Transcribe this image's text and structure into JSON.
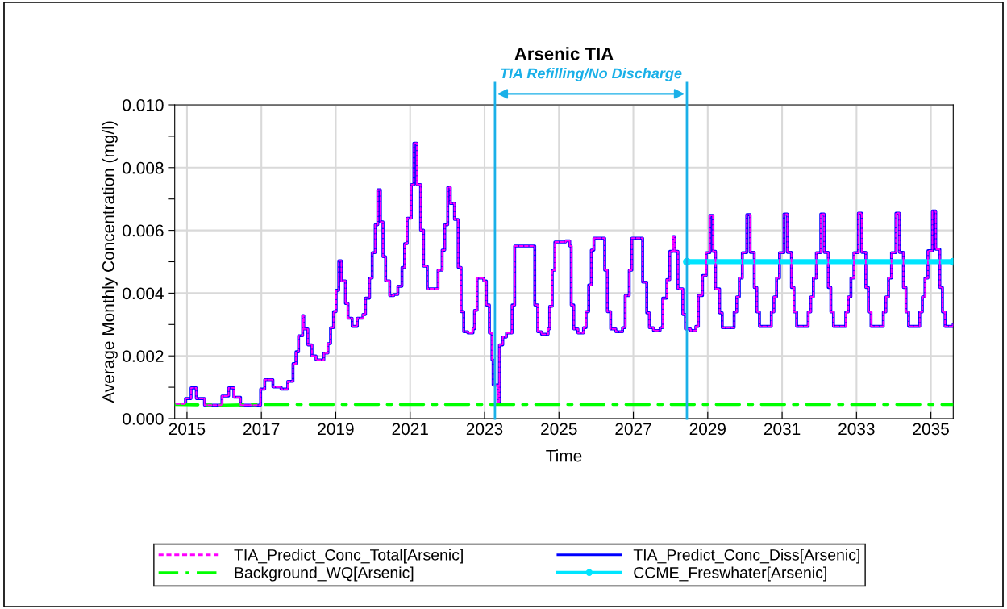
{
  "chart_data": {
    "type": "step",
    "title": "Arsenic TIA",
    "xlabel": "Time",
    "ylabel": "Average Monthly Concentration (mg/l)",
    "xlim": [
      2014.67,
      2035.6
    ],
    "xticks": [
      2015,
      2017,
      2019,
      2021,
      2023,
      2025,
      2027,
      2029,
      2031,
      2033,
      2035
    ],
    "ylim": [
      0,
      0.01
    ],
    "yticks": [
      {
        "value": 0,
        "label": "0.000"
      },
      {
        "value": 0.001,
        "label": null
      },
      {
        "value": 0.002,
        "label": "0.002"
      },
      {
        "value": 0.003,
        "label": null
      },
      {
        "value": 0.004,
        "label": "0.004"
      },
      {
        "value": 0.005,
        "label": null
      },
      {
        "value": 0.006,
        "label": "0.006"
      },
      {
        "value": 0.007,
        "label": null
      },
      {
        "value": 0.008,
        "label": "0.008"
      },
      {
        "value": 0.009,
        "label": null
      },
      {
        "value": 0.01,
        "label": "0.010"
      }
    ],
    "grid": true,
    "legend": "bottom",
    "annotations": [
      "TIA Refilling/No Discharge"
    ],
    "ref_lines": [
      {
        "axis": "x",
        "value": 2023.28,
        "color": "#1ab0e8"
      },
      {
        "axis": "x",
        "value": 2028.44,
        "color": "#1ab0e8"
      }
    ],
    "x": [
      2014.71,
      2014.96,
      2015.11,
      2015.25,
      2015.47,
      2015.72,
      2015.94,
      2016.12,
      2016.26,
      2016.44,
      2016.73,
      2016.98,
      2017.09,
      2017.31,
      2017.53,
      2017.71,
      2017.85,
      2017.93,
      2018.0,
      2018.11,
      2018.14,
      2018.25,
      2018.36,
      2018.47,
      2018.68,
      2018.79,
      2018.86,
      2018.94,
      2019.01,
      2019.08,
      2019.15,
      2019.26,
      2019.33,
      2019.44,
      2019.58,
      2019.73,
      2019.8,
      2019.91,
      2019.98,
      2020.06,
      2020.13,
      2020.2,
      2020.27,
      2020.34,
      2020.45,
      2020.56,
      2020.67,
      2020.78,
      2020.85,
      2020.92,
      2021.03,
      2021.1,
      2021.18,
      2021.28,
      2021.36,
      2021.46,
      2021.68,
      2021.75,
      2021.86,
      2021.93,
      2022.01,
      2022.08,
      2022.19,
      2022.29,
      2022.37,
      2022.44,
      2022.55,
      2022.69,
      2022.73,
      2022.8,
      2022.98,
      2023.05,
      2023.13,
      2023.2,
      2023.23,
      2023.36,
      2023.4,
      2023.49,
      2023.59,
      2023.74,
      2023.81,
      2024.32,
      2024.35,
      2024.43,
      2024.53,
      2024.71,
      2024.75,
      2024.82,
      2024.89,
      2025.18,
      2025.29,
      2025.33,
      2025.4,
      2025.51,
      2025.66,
      2025.73,
      2025.8,
      2025.87,
      2025.94,
      2026.2,
      2026.23,
      2026.3,
      2026.39,
      2026.53,
      2026.71,
      2026.78,
      2026.89,
      2026.96,
      2027.18,
      2027.25,
      2027.36,
      2027.43,
      2027.54,
      2027.72,
      2027.79,
      2027.9,
      2027.98,
      2028.07,
      2028.11,
      2028.2,
      2028.33,
      2028.4,
      2028.54,
      2028.68,
      2028.75,
      2028.86,
      2028.96,
      2029.06,
      2029.14,
      2029.21,
      2029.32,
      2029.39,
      2029.71,
      2029.78,
      2029.85,
      2029.93,
      2030.05,
      2030.14,
      2030.25,
      2030.32,
      2030.39,
      2030.71,
      2030.78,
      2030.85,
      2030.93,
      2031.05,
      2031.14,
      2031.25,
      2031.32,
      2031.39,
      2031.7,
      2031.77,
      2031.84,
      2031.92,
      2032.04,
      2032.13,
      2032.24,
      2032.31,
      2032.38,
      2032.71,
      2032.78,
      2032.85,
      2032.93,
      2033.05,
      2033.14,
      2033.25,
      2033.32,
      2033.39,
      2033.72,
      2033.79,
      2033.86,
      2033.94,
      2034.06,
      2034.15,
      2034.26,
      2034.33,
      2034.4,
      2034.7,
      2034.77,
      2034.84,
      2034.92,
      2035.04,
      2035.13,
      2035.24,
      2035.31,
      2035.38,
      2035.6
    ],
    "series": [
      {
        "name": "TIA_Predict_Conc_Total[Arsenic]",
        "color": "#ff00ff",
        "line_style": "dashed",
        "values": [
          0.00047,
          0.00064,
          0.00098,
          0.00064,
          0.00043,
          0.00043,
          0.00072,
          0.00098,
          0.00068,
          0.00043,
          0.00043,
          0.00094,
          0.00124,
          0.00101,
          0.00094,
          0.00119,
          0.00175,
          0.00213,
          0.00264,
          0.00328,
          0.00286,
          0.00235,
          0.002,
          0.00187,
          0.00209,
          0.00239,
          0.0029,
          0.00341,
          0.00409,
          0.00503,
          0.00439,
          0.00367,
          0.0032,
          0.00294,
          0.0032,
          0.00332,
          0.00384,
          0.00448,
          0.00529,
          0.00618,
          0.00729,
          0.00627,
          0.00516,
          0.00439,
          0.00392,
          0.00396,
          0.00422,
          0.00482,
          0.00558,
          0.00639,
          0.00746,
          0.00878,
          0.00746,
          0.00601,
          0.00486,
          0.00414,
          0.00414,
          0.00473,
          0.00537,
          0.00618,
          0.00737,
          0.00686,
          0.00635,
          0.00482,
          0.00341,
          0.00277,
          0.00273,
          0.00286,
          0.00345,
          0.00448,
          0.00439,
          0.00362,
          0.00273,
          0.00187,
          0.00107,
          0.00051,
          0.00235,
          0.0026,
          0.00273,
          0.00362,
          0.0055,
          0.0055,
          0.00362,
          0.00277,
          0.00269,
          0.00286,
          0.00358,
          0.00473,
          0.00563,
          0.00567,
          0.0055,
          0.00362,
          0.00286,
          0.00273,
          0.0029,
          0.00341,
          0.00426,
          0.00537,
          0.00575,
          0.00575,
          0.00473,
          0.00341,
          0.00286,
          0.00277,
          0.0029,
          0.00392,
          0.00473,
          0.00575,
          0.00575,
          0.00435,
          0.00337,
          0.0029,
          0.00281,
          0.0029,
          0.00384,
          0.00443,
          0.00533,
          0.0058,
          0.00533,
          0.00414,
          0.00332,
          0.00286,
          0.00281,
          0.00294,
          0.00392,
          0.00456,
          0.00529,
          0.00648,
          0.00533,
          0.00414,
          0.00337,
          0.0029,
          0.0034,
          0.00388,
          0.00448,
          0.00529,
          0.0065,
          0.0053,
          0.00418,
          0.0034,
          0.00294,
          0.0034,
          0.00388,
          0.00448,
          0.00529,
          0.00652,
          0.0053,
          0.00418,
          0.0034,
          0.00294,
          0.0034,
          0.00388,
          0.00448,
          0.00529,
          0.00652,
          0.0053,
          0.00418,
          0.0034,
          0.00294,
          0.0034,
          0.00388,
          0.00448,
          0.00529,
          0.00655,
          0.0053,
          0.00418,
          0.0034,
          0.00294,
          0.0034,
          0.00388,
          0.00448,
          0.00529,
          0.00655,
          0.0053,
          0.00418,
          0.0034,
          0.00294,
          0.0034,
          0.00388,
          0.00448,
          0.00535,
          0.00662,
          0.0054,
          0.00418,
          0.0034,
          0.00294,
          0.003
        ]
      },
      {
        "name": "TIA_Predict_Conc_Diss[Arsenic]",
        "color": "#0000ff",
        "line_style": "solid",
        "values": [
          0.00047,
          0.00064,
          0.00098,
          0.00064,
          0.00043,
          0.00043,
          0.00072,
          0.00098,
          0.00068,
          0.00043,
          0.00043,
          0.00094,
          0.00124,
          0.00101,
          0.00094,
          0.00119,
          0.00175,
          0.00213,
          0.00264,
          0.00328,
          0.00286,
          0.00235,
          0.002,
          0.00187,
          0.00209,
          0.00239,
          0.0029,
          0.00341,
          0.00409,
          0.00503,
          0.00439,
          0.00367,
          0.0032,
          0.00294,
          0.0032,
          0.00332,
          0.00384,
          0.00448,
          0.00529,
          0.00618,
          0.00729,
          0.00627,
          0.00516,
          0.00439,
          0.00392,
          0.00396,
          0.00422,
          0.00482,
          0.00558,
          0.00639,
          0.00746,
          0.00878,
          0.00746,
          0.00601,
          0.00486,
          0.00414,
          0.00414,
          0.00473,
          0.00537,
          0.00618,
          0.00737,
          0.00686,
          0.00635,
          0.00482,
          0.00341,
          0.00277,
          0.00273,
          0.00286,
          0.00345,
          0.00448,
          0.00439,
          0.00362,
          0.00273,
          0.00187,
          0.00107,
          0.00051,
          0.00235,
          0.0026,
          0.00273,
          0.00362,
          0.0055,
          0.0055,
          0.00362,
          0.00277,
          0.00269,
          0.00286,
          0.00358,
          0.00473,
          0.00563,
          0.00567,
          0.0055,
          0.00362,
          0.00286,
          0.00273,
          0.0029,
          0.00341,
          0.00426,
          0.00537,
          0.00575,
          0.00575,
          0.00473,
          0.00341,
          0.00286,
          0.00277,
          0.0029,
          0.00392,
          0.00473,
          0.00575,
          0.00575,
          0.00435,
          0.00337,
          0.0029,
          0.00281,
          0.0029,
          0.00384,
          0.00443,
          0.00533,
          0.0058,
          0.00533,
          0.00414,
          0.00332,
          0.00286,
          0.00281,
          0.00294,
          0.00392,
          0.00456,
          0.00529,
          0.00648,
          0.00533,
          0.00414,
          0.00337,
          0.0029,
          0.0034,
          0.00388,
          0.00448,
          0.00529,
          0.0065,
          0.0053,
          0.00418,
          0.0034,
          0.00294,
          0.0034,
          0.00388,
          0.00448,
          0.00529,
          0.00652,
          0.0053,
          0.00418,
          0.0034,
          0.00294,
          0.0034,
          0.00388,
          0.00448,
          0.00529,
          0.00652,
          0.0053,
          0.00418,
          0.0034,
          0.00294,
          0.0034,
          0.00388,
          0.00448,
          0.00529,
          0.00655,
          0.0053,
          0.00418,
          0.0034,
          0.00294,
          0.0034,
          0.00388,
          0.00448,
          0.00529,
          0.00655,
          0.0053,
          0.00418,
          0.0034,
          0.00294,
          0.0034,
          0.00388,
          0.00448,
          0.00535,
          0.00662,
          0.0054,
          0.00418,
          0.0034,
          0.00294,
          0.003
        ]
      },
      {
        "name": "Background_WQ[Arsenic]",
        "type": "line",
        "color": "#00ff00",
        "line_style": "dashdot",
        "x": [
          2014.67,
          2016,
          2017,
          2018,
          2019,
          2020,
          2021,
          2022,
          2023,
          2024,
          2025,
          2026,
          2027,
          2028,
          2029,
          2030,
          2031,
          2032,
          2033,
          2034,
          2035,
          2035.6
        ],
        "values": [
          0.00045,
          0.00043,
          0.00045,
          0.00045,
          0.00045,
          0.00045,
          0.00045,
          0.00045,
          0.00045,
          0.00045,
          0.00045,
          0.00045,
          0.00045,
          0.00045,
          0.00045,
          0.00045,
          0.00045,
          0.00045,
          0.00045,
          0.00045,
          0.00045,
          0.00045
        ]
      },
      {
        "name": "CCME_Freswhater[Arsenic]",
        "type": "line",
        "color": "#00e5ff",
        "marker": "circle",
        "line_style": "solid",
        "x": [
          2028.44,
          2035.6
        ],
        "values": [
          0.005,
          0.005
        ]
      }
    ]
  }
}
